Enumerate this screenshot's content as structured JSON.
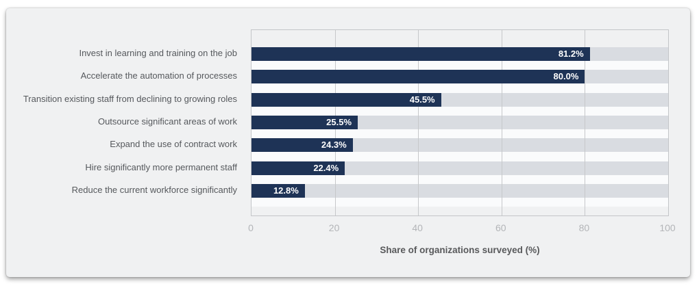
{
  "chart_data": {
    "type": "bar",
    "orientation": "horizontal",
    "categories": [
      "Invest in learning and training on the job",
      "Accelerate the automation of processes",
      "Transition existing staff from declining to growing roles",
      "Outsource significant areas of work",
      "Expand the use of contract work",
      "Hire significantly more permanent staff",
      "Reduce the current workforce significantly"
    ],
    "values": [
      81.2,
      80.0,
      45.5,
      25.5,
      24.3,
      22.4,
      12.8
    ],
    "value_labels": [
      "81.2%",
      "80.0%",
      "45.5%",
      "25.5%",
      "24.3%",
      "22.4%",
      "12.8%"
    ],
    "title": "",
    "xlabel": "Share of organizations surveyed (%)",
    "ylabel": "",
    "xlim": [
      0,
      100
    ],
    "xticks": [
      "0",
      "20",
      "40",
      "60",
      "80",
      "100"
    ],
    "grid": true,
    "legend": false,
    "colors": {
      "card_background": "#f0f1f2",
      "bar": "#1e3356",
      "bar_track": "#d9dce1",
      "row_gap": "#fafbfc",
      "grid_line": "#c6c8ca",
      "plot_border": "#c3c5c8",
      "category_label": "#55585c",
      "value_label": "#ffffff",
      "tick_label": "#b3b5b8",
      "axis_title": "#58595b"
    }
  }
}
